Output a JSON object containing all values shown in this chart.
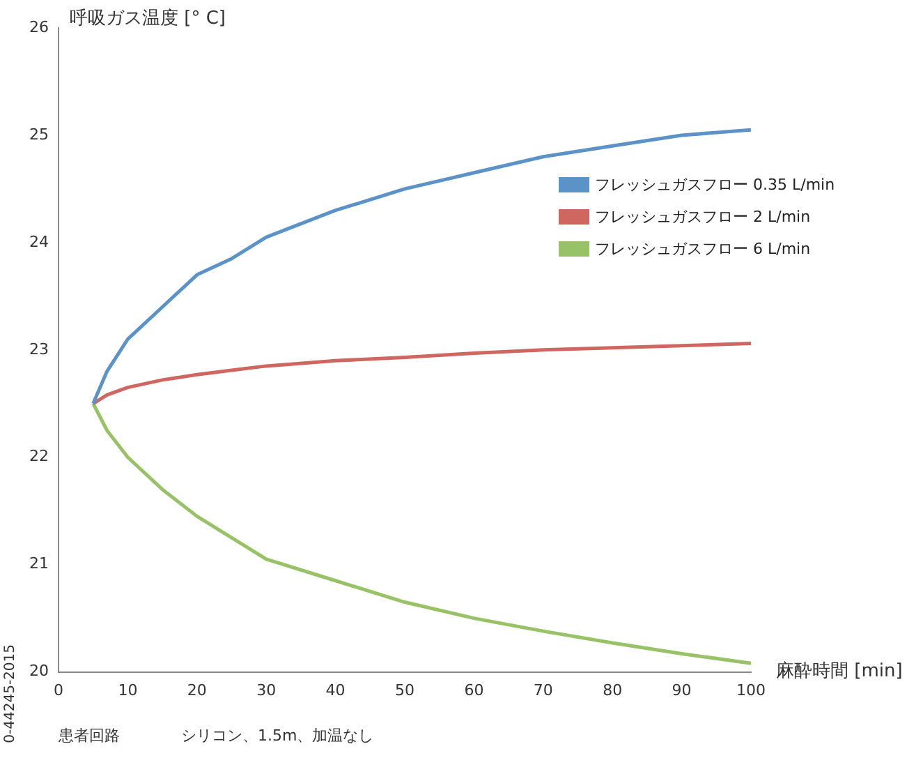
{
  "chart_data": {
    "type": "line",
    "xlabel": "麻酔時間 [min]",
    "ylabel": "呼吸ガス温度 [° C]",
    "xlim": [
      0,
      100
    ],
    "xticks": [
      0,
      10,
      20,
      30,
      40,
      50,
      60,
      70,
      80,
      90,
      100
    ],
    "ylim": [
      20,
      26
    ],
    "yticks": [
      20,
      21,
      22,
      23,
      24,
      25,
      26
    ],
    "grid": false,
    "legend": "right",
    "marker": "none",
    "line_style": "solid",
    "x": [
      5,
      7,
      10,
      15,
      20,
      25,
      30,
      40,
      50,
      60,
      70,
      80,
      90,
      100
    ],
    "series": [
      {
        "name": "フレッシュガスフロー 0.35 L/min",
        "color": "#5b93c9",
        "values": [
          22.5,
          22.8,
          23.1,
          23.4,
          23.7,
          23.85,
          24.05,
          24.3,
          24.5,
          24.65,
          24.8,
          24.9,
          25.0,
          25.05
        ]
      },
      {
        "name": "フレッシュガスフロー 2 L/min",
        "color": "#cf6660",
        "values": [
          22.5,
          22.58,
          22.65,
          22.72,
          22.77,
          22.81,
          22.85,
          22.9,
          22.93,
          22.97,
          23.0,
          23.02,
          23.04,
          23.06
        ]
      },
      {
        "name": "フレッシュガスフロー 6 L/min",
        "color": "#98c266",
        "values": [
          22.5,
          22.25,
          22.0,
          21.7,
          21.45,
          21.25,
          21.05,
          20.85,
          20.65,
          20.5,
          20.38,
          20.27,
          20.17,
          20.08
        ]
      }
    ],
    "annotations": [
      "患者回路　　　　シリコン、1.5m、加温なし",
      "0-44245-2015"
    ]
  }
}
